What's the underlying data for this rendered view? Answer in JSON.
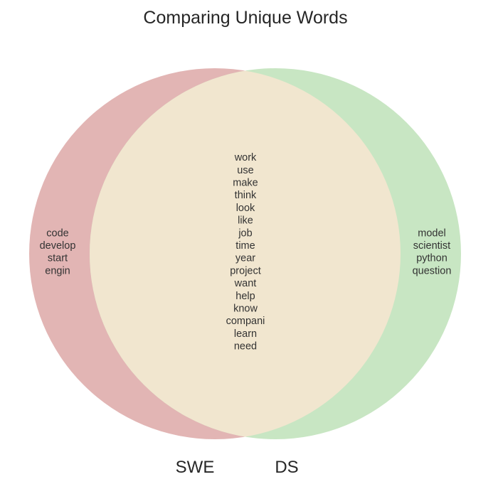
{
  "chart_data": {
    "type": "venn",
    "title": "Comparing Unique Words",
    "sets": [
      {
        "name": "SWE",
        "color": "#e2b5b4"
      },
      {
        "name": "DS",
        "color": "#c8e6c3"
      }
    ],
    "intersection_color": "#f1e6cf",
    "regions": {
      "swe_only": [
        "code",
        "develop",
        "start",
        "engin"
      ],
      "ds_only": [
        "model",
        "scientist",
        "python",
        "question"
      ],
      "both": [
        "work",
        "use",
        "make",
        "think",
        "look",
        "like",
        "job",
        "time",
        "year",
        "project",
        "want",
        "help",
        "know",
        "compani",
        "learn",
        "need"
      ]
    }
  }
}
